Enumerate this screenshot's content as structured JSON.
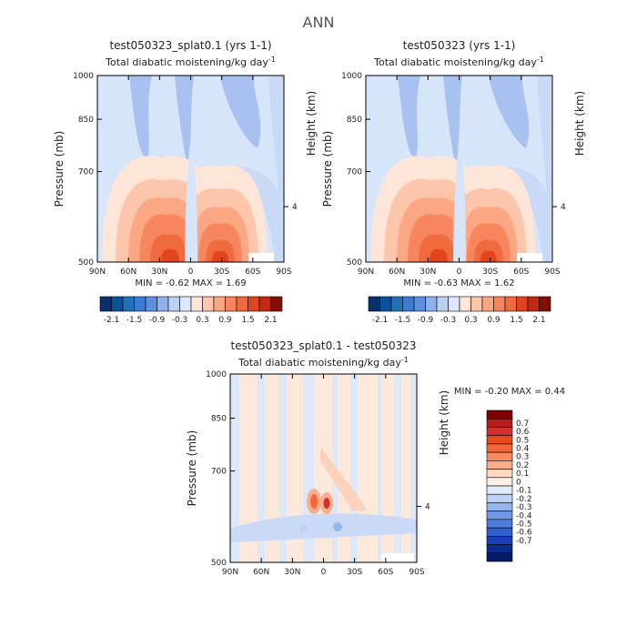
{
  "page": {
    "title": "ANN"
  },
  "chart_data": [
    {
      "type": "heatmap",
      "id": "p1",
      "title": "test050323_splat0.1 (yrs 1-1)",
      "subtitle": "Total diabatic moistening/kg day",
      "subtitle_sup": "-1",
      "xlabel": "",
      "ylabel": "Pressure (mb)",
      "ylabel_right": "Height (km)",
      "xticks": [
        "90N",
        "60N",
        "30N",
        "0",
        "30S",
        "60S",
        "90S"
      ],
      "yticks": [
        "500",
        "700",
        "850",
        "1000"
      ],
      "yticks_right": [
        "4"
      ],
      "xlim": [
        90,
        -90
      ],
      "ylim": [
        1000,
        500
      ],
      "stats": {
        "min_label": "MIN =",
        "min": "-0.62",
        "max_label": "MAX =",
        "max": "1.69"
      },
      "colorbar": {
        "orientation": "horizontal",
        "colors": [
          "#08306b",
          "#08519c",
          "#2171b5",
          "#3a7bd5",
          "#5d8fe0",
          "#8fb0ea",
          "#bcd0f3",
          "#dce8fb",
          "#fde6d7",
          "#fcc6ac",
          "#fca784",
          "#f7865e",
          "#ef6a3e",
          "#e0441e",
          "#c22a10",
          "#7f1006"
        ],
        "labels": [
          "-2.1",
          "-1.5",
          "-0.9",
          "-0.3",
          "0.3",
          "0.9",
          "1.5",
          "2.1"
        ]
      }
    },
    {
      "type": "heatmap",
      "id": "p2",
      "title": "test050323 (yrs 1-1)",
      "subtitle": "Total diabatic moistening/kg day",
      "subtitle_sup": "-1",
      "xlabel": "",
      "ylabel": "Pressure (mb)",
      "ylabel_right": "Height (km)",
      "xticks": [
        "90N",
        "60N",
        "30N",
        "0",
        "30S",
        "60S",
        "90S"
      ],
      "yticks": [
        "500",
        "700",
        "850",
        "1000"
      ],
      "yticks_right": [
        "4"
      ],
      "xlim": [
        90,
        -90
      ],
      "ylim": [
        1000,
        500
      ],
      "stats": {
        "min_label": "MIN =",
        "min": "-0.63",
        "max_label": "MAX =",
        "max": "1.62"
      },
      "colorbar": {
        "orientation": "horizontal",
        "colors": [
          "#08306b",
          "#08519c",
          "#2171b5",
          "#3a7bd5",
          "#5d8fe0",
          "#8fb0ea",
          "#bcd0f3",
          "#dce8fb",
          "#fde6d7",
          "#fcc6ac",
          "#fca784",
          "#f7865e",
          "#ef6a3e",
          "#e0441e",
          "#c22a10",
          "#7f1006"
        ],
        "labels": [
          "-2.1",
          "-1.5",
          "-0.9",
          "-0.3",
          "0.3",
          "0.9",
          "1.5",
          "2.1"
        ]
      }
    },
    {
      "type": "heatmap",
      "id": "p3",
      "title": "test050323_splat0.1 - test050323",
      "subtitle": "Total diabatic moistening/kg day",
      "subtitle_sup": "-1",
      "xlabel": "",
      "ylabel": "Pressure (mb)",
      "ylabel_right": "Height (km)",
      "xticks": [
        "90N",
        "60N",
        "30N",
        "0",
        "30S",
        "60S",
        "90S"
      ],
      "yticks": [
        "500",
        "700",
        "850",
        "1000"
      ],
      "yticks_right": [
        "4"
      ],
      "xlim": [
        90,
        -90
      ],
      "ylim": [
        1000,
        500
      ],
      "stats": {
        "min_label": "MIN =",
        "min": "-0.20",
        "max_label": "MAX =",
        "max": "0.44"
      },
      "colorbar": {
        "orientation": "vertical",
        "colors": [
          "#7f0000",
          "#b71c1c",
          "#d32f2f",
          "#e64a19",
          "#f4663a",
          "#f88a63",
          "#fbae8f",
          "#fdd9c4",
          "#fdefe4",
          "#dfeafb",
          "#bcd3f5",
          "#93b6ee",
          "#6f97e6",
          "#4f7ddf",
          "#2e5fd1",
          "#1a3fb8",
          "#0a2a8f",
          "#041a66"
        ],
        "labels": [
          "0.7",
          "0.6",
          "0.5",
          "0.4",
          "0.3",
          "0.2",
          "0.1",
          "0",
          "-0.1",
          "-0.2",
          "-0.3",
          "-0.4",
          "-0.5",
          "-0.6",
          "-0.7"
        ]
      }
    }
  ]
}
